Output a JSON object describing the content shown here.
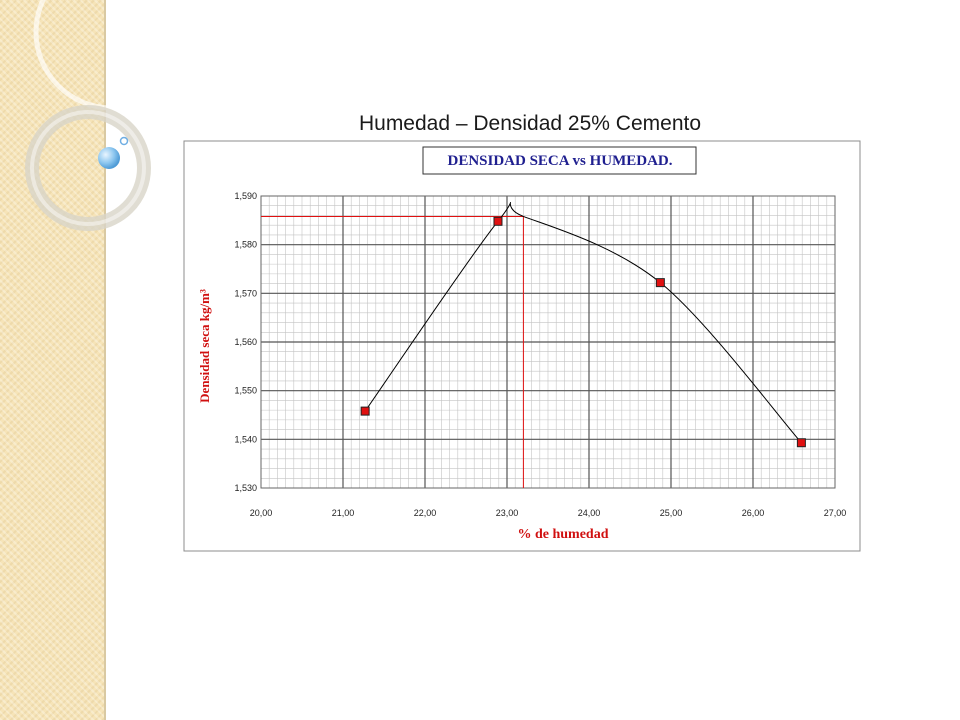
{
  "slide": {
    "title": "Humedad – Densidad 25% Cemento"
  },
  "colors": {
    "strip": "#f6e4b8",
    "marker": "#e01010",
    "curve": "#000000",
    "ref_line": "#e01010",
    "title_text": "#1f1f8f",
    "axis_text": "#d01010"
  },
  "chart_data": {
    "type": "scatter",
    "title": "DENSIDAD SECA vs HUMEDAD.",
    "xlabel": "% de humedad",
    "ylabel": "Densidad seca kg/m³",
    "xlim": [
      20,
      27
    ],
    "ylim": [
      1.53,
      1.59
    ],
    "x_ticks": [
      "20,00",
      "21,00",
      "22,00",
      "23,00",
      "24,00",
      "25,00",
      "26,00",
      "27,00"
    ],
    "y_ticks": [
      "1,530",
      "1,540",
      "1,550",
      "1,560",
      "1,570",
      "1,580",
      "1,590"
    ],
    "grid": true,
    "legend": "none",
    "series": [
      {
        "points": [
          {
            "x": 21.27,
            "y": 1.5458
          },
          {
            "x": 22.89,
            "y": 1.5848
          },
          {
            "x": 24.87,
            "y": 1.5722
          },
          {
            "x": 26.59,
            "y": 1.5393
          }
        ]
      }
    ],
    "optimum": {
      "x": 23.2,
      "y": 1.5858
    }
  }
}
